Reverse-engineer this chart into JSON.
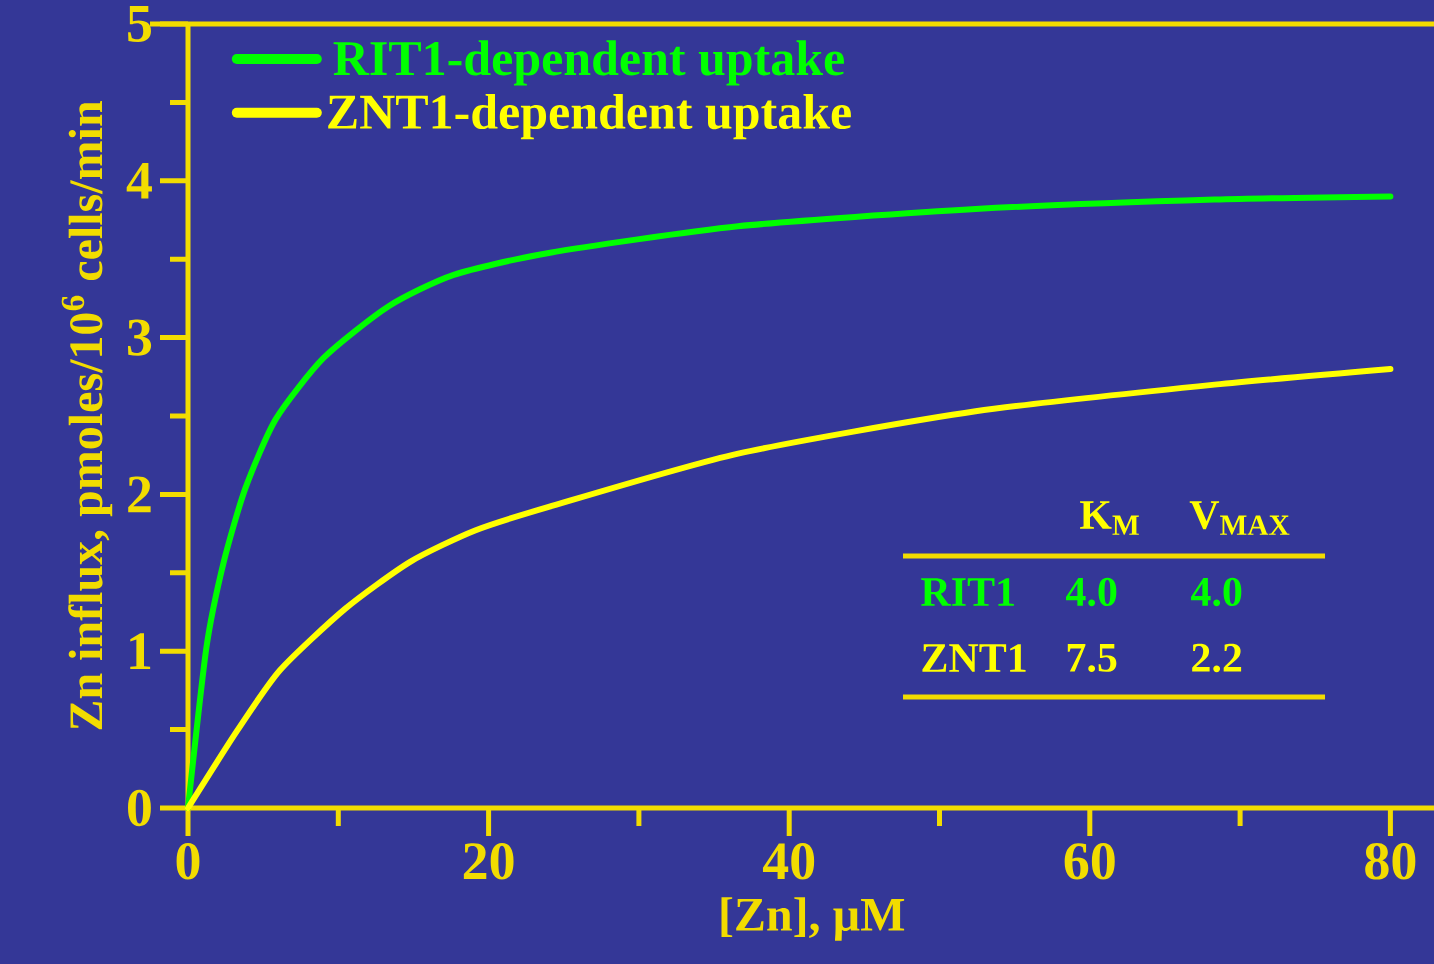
{
  "chart_data": {
    "type": "line",
    "xlabel": "[Zn], µM",
    "ylabel": "Zn influx, pmoles/10$^{6}$ cells/min",
    "xlim": [
      0,
      83
    ],
    "ylim": [
      0,
      5
    ],
    "xticks": [
      0,
      20,
      40,
      60,
      80
    ],
    "yticks": [
      0,
      1,
      2,
      3,
      4,
      5
    ],
    "legend": "top left",
    "marker": "none",
    "line_style": "solid",
    "series": [
      {
        "name": "RIT1-dependent uptake",
        "color": "#00ff00",
        "x": [
          0,
          1.22,
          2.38,
          3.82,
          5.84,
          9.02,
          13.35,
          17.68,
          24.0,
          36.6,
          52.4,
          68.3,
          80
        ],
        "values": [
          0,
          1.02,
          1.57,
          2.04,
          2.48,
          2.87,
          3.2,
          3.4,
          3.54,
          3.71,
          3.82,
          3.88,
          3.9
        ]
      },
      {
        "name": "ZNT1-dependent uptake",
        "color": "#ffff00",
        "x": [
          0,
          3.25,
          6.13,
          10.45,
          14.78,
          19.1,
          24.0,
          36.6,
          52.4,
          68.3,
          80
        ],
        "values": [
          0,
          0.49,
          0.88,
          1.27,
          1.57,
          1.77,
          1.92,
          2.26,
          2.53,
          2.7,
          2.8
        ]
      }
    ],
    "annotations": [
      "K$_{M}$",
      "V$_{MAX}$",
      "RIT1",
      "4.0",
      "4.0",
      "ZNT1",
      "7.5",
      "2.2"
    ]
  }
}
